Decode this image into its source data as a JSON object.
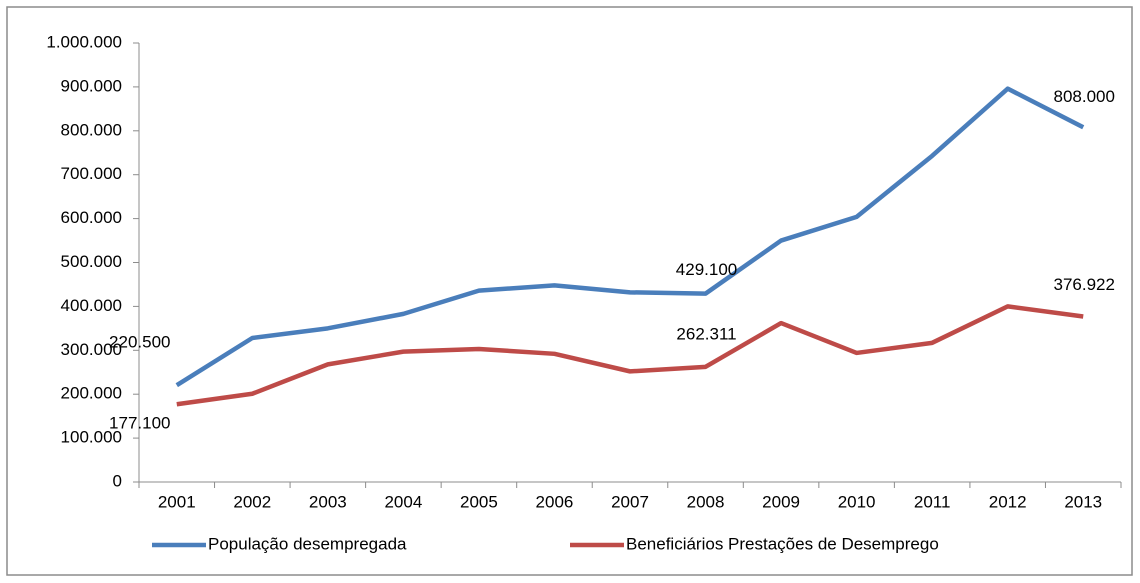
{
  "chart_data": {
    "type": "line",
    "categories": [
      "2001",
      "2002",
      "2003",
      "2004",
      "2005",
      "2006",
      "2007",
      "2008",
      "2009",
      "2010",
      "2011",
      "2012",
      "2013"
    ],
    "series": [
      {
        "name": "População desempregada",
        "color": "#4a7ebb",
        "values": [
          220500,
          328000,
          350000,
          383000,
          436000,
          448000,
          432000,
          429100,
          550000,
          604000,
          743000,
          896000,
          808000
        ],
        "value_labels": [
          "220.500",
          null,
          null,
          null,
          null,
          null,
          null,
          "429.100",
          null,
          null,
          null,
          null,
          "808.000"
        ]
      },
      {
        "name": "Beneficiários Prestações de Desemprego",
        "color": "#be4b48",
        "values": [
          177100,
          201000,
          268000,
          297000,
          303000,
          292000,
          252000,
          262311,
          362000,
          294000,
          317000,
          400000,
          376922
        ],
        "value_labels": [
          "177.100",
          null,
          null,
          null,
          null,
          null,
          null,
          "262.311",
          null,
          null,
          null,
          null,
          "376.922"
        ]
      }
    ],
    "ylim": [
      0,
      1000000
    ],
    "yticks": [
      0,
      {
        "value": 100000,
        "label": "100.000"
      },
      {
        "value": 200000,
        "label": "200.000"
      },
      {
        "value": 300000,
        "label": "300.000"
      },
      {
        "value": 400000,
        "label": "400.000"
      },
      {
        "value": 500000,
        "label": "500.000"
      },
      {
        "value": 600000,
        "label": "600.000"
      },
      {
        "value": 700000,
        "label": "700.000"
      },
      {
        "value": 800000,
        "label": "800.000"
      },
      {
        "value": 900000,
        "label": "900.000"
      },
      {
        "value": 1000000,
        "label": "1.000.000"
      }
    ],
    "legend": "bottom"
  }
}
